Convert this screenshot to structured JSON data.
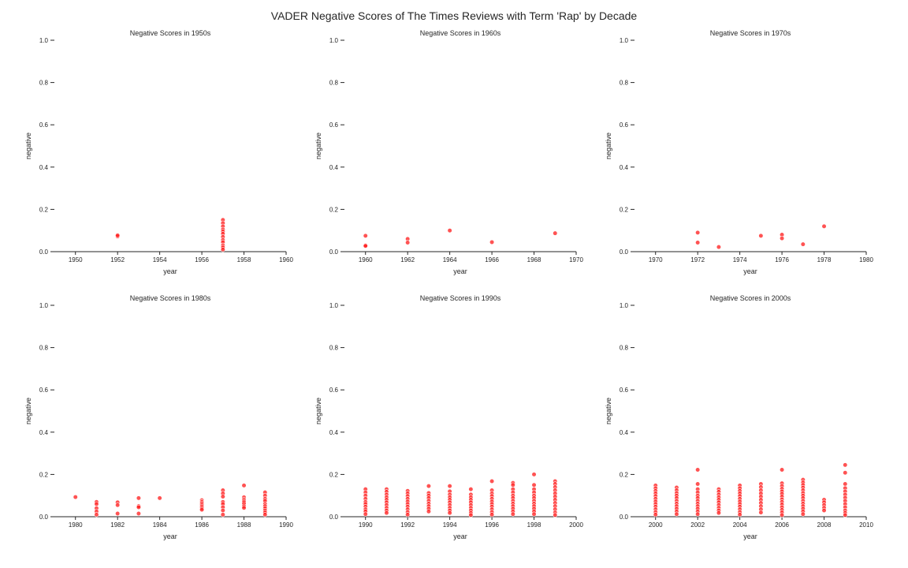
{
  "figure_title": "VADER Negative Scores of The Times Reviews with Term 'Rap' by Decade",
  "colors": {
    "point": "#ff1a1a",
    "axis": "#262626",
    "background": "#ffffff"
  },
  "chart_data": [
    {
      "type": "scatter",
      "title": "Negative Scores in 1950s",
      "xlabel": "year",
      "ylabel": "negative",
      "xlim": [
        1949,
        1960
      ],
      "ylim": [
        0,
        1.0
      ],
      "xticks": [
        "1950",
        "1952",
        "1954",
        "1956",
        "1958",
        "1960"
      ],
      "yticks": [
        "0.0",
        "0.2",
        "0.4",
        "0.6",
        "0.8",
        "1.0"
      ],
      "grid": false,
      "points": [
        [
          1952,
          0.072
        ],
        [
          1952,
          0.077
        ],
        [
          1957,
          0.15
        ],
        [
          1957,
          0.135
        ],
        [
          1957,
          0.12
        ],
        [
          1957,
          0.105
        ],
        [
          1957,
          0.095
        ],
        [
          1957,
          0.085
        ],
        [
          1957,
          0.07
        ],
        [
          1957,
          0.055
        ],
        [
          1957,
          0.045
        ],
        [
          1957,
          0.03
        ],
        [
          1957,
          0.02
        ],
        [
          1957,
          0.01
        ]
      ]
    },
    {
      "type": "scatter",
      "title": "Negative Scores in 1960s",
      "xlabel": "year",
      "ylabel": "negative",
      "xlim": [
        1959,
        1970
      ],
      "ylim": [
        0,
        1.0
      ],
      "xticks": [
        "1960",
        "1962",
        "1964",
        "1966",
        "1968",
        "1970"
      ],
      "yticks": [
        "0.0",
        "0.2",
        "0.4",
        "0.6",
        "0.8",
        "1.0"
      ],
      "grid": false,
      "points": [
        [
          1960,
          0.075
        ],
        [
          1960,
          0.03
        ],
        [
          1960,
          0.027
        ],
        [
          1962,
          0.06
        ],
        [
          1962,
          0.043
        ],
        [
          1964,
          0.1
        ],
        [
          1966,
          0.045
        ],
        [
          1969,
          0.087
        ]
      ]
    },
    {
      "type": "scatter",
      "title": "Negative Scores in 1970s",
      "xlabel": "year",
      "ylabel": "negative",
      "xlim": [
        1969,
        1980
      ],
      "ylim": [
        0,
        1.0
      ],
      "xticks": [
        "1970",
        "1972",
        "1974",
        "1976",
        "1978",
        "1980"
      ],
      "yticks": [
        "0.0",
        "0.2",
        "0.4",
        "0.6",
        "0.8",
        "1.0"
      ],
      "grid": false,
      "points": [
        [
          1972,
          0.09
        ],
        [
          1972,
          0.043
        ],
        [
          1973,
          0.022
        ],
        [
          1975,
          0.075
        ],
        [
          1976,
          0.08
        ],
        [
          1976,
          0.063
        ],
        [
          1977,
          0.035
        ],
        [
          1978,
          0.12
        ]
      ]
    },
    {
      "type": "scatter",
      "title": "Negative Scores in 1980s",
      "xlabel": "year",
      "ylabel": "negative",
      "xlim": [
        1979,
        1990
      ],
      "ylim": [
        0,
        1.0
      ],
      "xticks": [
        "1980",
        "1982",
        "1984",
        "1986",
        "1988",
        "1990"
      ],
      "yticks": [
        "0.0",
        "0.2",
        "0.4",
        "0.6",
        "0.8",
        "1.0"
      ],
      "grid": false,
      "points": [
        [
          1980,
          0.093
        ],
        [
          1981,
          0.07
        ],
        [
          1981,
          0.06
        ],
        [
          1981,
          0.04
        ],
        [
          1981,
          0.025
        ],
        [
          1981,
          0.01
        ],
        [
          1982,
          0.068
        ],
        [
          1982,
          0.055
        ],
        [
          1982,
          0.015
        ],
        [
          1983,
          0.088
        ],
        [
          1983,
          0.05
        ],
        [
          1983,
          0.045
        ],
        [
          1983,
          0.015
        ],
        [
          1984,
          0.088
        ],
        [
          1986,
          0.078
        ],
        [
          1986,
          0.07
        ],
        [
          1986,
          0.063
        ],
        [
          1986,
          0.055
        ],
        [
          1986,
          0.048
        ],
        [
          1986,
          0.04
        ],
        [
          1986,
          0.033
        ],
        [
          1987,
          0.125
        ],
        [
          1987,
          0.11
        ],
        [
          1987,
          0.095
        ],
        [
          1987,
          0.07
        ],
        [
          1987,
          0.06
        ],
        [
          1987,
          0.045
        ],
        [
          1987,
          0.03
        ],
        [
          1987,
          0.01
        ],
        [
          1988,
          0.148
        ],
        [
          1988,
          0.092
        ],
        [
          1988,
          0.082
        ],
        [
          1988,
          0.075
        ],
        [
          1988,
          0.068
        ],
        [
          1988,
          0.06
        ],
        [
          1988,
          0.05
        ],
        [
          1988,
          0.042
        ],
        [
          1989,
          0.115
        ],
        [
          1989,
          0.1
        ],
        [
          1989,
          0.085
        ],
        [
          1989,
          0.075
        ],
        [
          1989,
          0.06
        ],
        [
          1989,
          0.05
        ],
        [
          1989,
          0.04
        ],
        [
          1989,
          0.03
        ],
        [
          1989,
          0.02
        ],
        [
          1989,
          0.01
        ]
      ]
    },
    {
      "type": "scatter",
      "title": "Negative Scores in 1990s",
      "xlabel": "year",
      "ylabel": "negative",
      "xlim": [
        1989,
        2000
      ],
      "ylim": [
        0,
        1.0
      ],
      "xticks": [
        "1990",
        "1992",
        "1994",
        "1996",
        "1998",
        "2000"
      ],
      "yticks": [
        "0.0",
        "0.2",
        "0.4",
        "0.6",
        "0.8",
        "1.0"
      ],
      "grid": false,
      "points": [
        [
          1990,
          0.13
        ],
        [
          1990,
          0.115
        ],
        [
          1990,
          0.1
        ],
        [
          1990,
          0.085
        ],
        [
          1990,
          0.07
        ],
        [
          1990,
          0.06
        ],
        [
          1990,
          0.048
        ],
        [
          1990,
          0.035
        ],
        [
          1990,
          0.025
        ],
        [
          1990,
          0.012
        ],
        [
          1991,
          0.13
        ],
        [
          1991,
          0.118
        ],
        [
          1991,
          0.105
        ],
        [
          1991,
          0.092
        ],
        [
          1991,
          0.08
        ],
        [
          1991,
          0.068
        ],
        [
          1991,
          0.055
        ],
        [
          1991,
          0.042
        ],
        [
          1991,
          0.03
        ],
        [
          1991,
          0.018
        ],
        [
          1992,
          0.122
        ],
        [
          1992,
          0.11
        ],
        [
          1992,
          0.098
        ],
        [
          1992,
          0.085
        ],
        [
          1992,
          0.072
        ],
        [
          1992,
          0.06
        ],
        [
          1992,
          0.048
        ],
        [
          1992,
          0.035
        ],
        [
          1992,
          0.022
        ],
        [
          1992,
          0.01
        ],
        [
          1993,
          0.145
        ],
        [
          1993,
          0.112
        ],
        [
          1993,
          0.1
        ],
        [
          1993,
          0.088
        ],
        [
          1993,
          0.075
        ],
        [
          1993,
          0.062
        ],
        [
          1993,
          0.05
        ],
        [
          1993,
          0.038
        ],
        [
          1993,
          0.025
        ],
        [
          1994,
          0.145
        ],
        [
          1994,
          0.12
        ],
        [
          1994,
          0.105
        ],
        [
          1994,
          0.092
        ],
        [
          1994,
          0.08
        ],
        [
          1994,
          0.068
        ],
        [
          1994,
          0.055
        ],
        [
          1994,
          0.042
        ],
        [
          1994,
          0.03
        ],
        [
          1994,
          0.018
        ],
        [
          1995,
          0.13
        ],
        [
          1995,
          0.105
        ],
        [
          1995,
          0.092
        ],
        [
          1995,
          0.08
        ],
        [
          1995,
          0.068
        ],
        [
          1995,
          0.055
        ],
        [
          1995,
          0.042
        ],
        [
          1995,
          0.03
        ],
        [
          1995,
          0.018
        ],
        [
          1995,
          0.008
        ],
        [
          1996,
          0.168
        ],
        [
          1996,
          0.125
        ],
        [
          1996,
          0.11
        ],
        [
          1996,
          0.098
        ],
        [
          1996,
          0.085
        ],
        [
          1996,
          0.072
        ],
        [
          1996,
          0.06
        ],
        [
          1996,
          0.048
        ],
        [
          1996,
          0.035
        ],
        [
          1996,
          0.022
        ],
        [
          1996,
          0.01
        ],
        [
          1997,
          0.16
        ],
        [
          1997,
          0.15
        ],
        [
          1997,
          0.13
        ],
        [
          1997,
          0.115
        ],
        [
          1997,
          0.1
        ],
        [
          1997,
          0.088
        ],
        [
          1997,
          0.075
        ],
        [
          1997,
          0.062
        ],
        [
          1997,
          0.05
        ],
        [
          1997,
          0.038
        ],
        [
          1997,
          0.025
        ],
        [
          1997,
          0.012
        ],
        [
          1998,
          0.2
        ],
        [
          1998,
          0.15
        ],
        [
          1998,
          0.13
        ],
        [
          1998,
          0.115
        ],
        [
          1998,
          0.1
        ],
        [
          1998,
          0.088
        ],
        [
          1998,
          0.075
        ],
        [
          1998,
          0.062
        ],
        [
          1998,
          0.05
        ],
        [
          1998,
          0.038
        ],
        [
          1998,
          0.025
        ],
        [
          1998,
          0.012
        ],
        [
          1999,
          0.168
        ],
        [
          1999,
          0.155
        ],
        [
          1999,
          0.14
        ],
        [
          1999,
          0.125
        ],
        [
          1999,
          0.11
        ],
        [
          1999,
          0.095
        ],
        [
          1999,
          0.08
        ],
        [
          1999,
          0.065
        ],
        [
          1999,
          0.05
        ],
        [
          1999,
          0.035
        ],
        [
          1999,
          0.02
        ],
        [
          1999,
          0.008
        ]
      ]
    },
    {
      "type": "scatter",
      "title": "Negative Scores in 2000s",
      "xlabel": "year",
      "ylabel": "negative",
      "xlim": [
        1999,
        2010
      ],
      "ylim": [
        0,
        1.0
      ],
      "xticks": [
        "2000",
        "2002",
        "2004",
        "2006",
        "2008",
        "2010"
      ],
      "yticks": [
        "0.0",
        "0.2",
        "0.4",
        "0.6",
        "0.8",
        "1.0"
      ],
      "grid": false,
      "points": [
        [
          2000,
          0.148
        ],
        [
          2000,
          0.135
        ],
        [
          2000,
          0.122
        ],
        [
          2000,
          0.11
        ],
        [
          2000,
          0.098
        ],
        [
          2000,
          0.085
        ],
        [
          2000,
          0.072
        ],
        [
          2000,
          0.06
        ],
        [
          2000,
          0.048
        ],
        [
          2000,
          0.035
        ],
        [
          2000,
          0.022
        ],
        [
          2000,
          0.01
        ],
        [
          2001,
          0.138
        ],
        [
          2001,
          0.125
        ],
        [
          2001,
          0.112
        ],
        [
          2001,
          0.1
        ],
        [
          2001,
          0.088
        ],
        [
          2001,
          0.075
        ],
        [
          2001,
          0.062
        ],
        [
          2001,
          0.05
        ],
        [
          2001,
          0.038
        ],
        [
          2001,
          0.025
        ],
        [
          2001,
          0.012
        ],
        [
          2002,
          0.222
        ],
        [
          2002,
          0.155
        ],
        [
          2002,
          0.13
        ],
        [
          2002,
          0.115
        ],
        [
          2002,
          0.1
        ],
        [
          2002,
          0.088
        ],
        [
          2002,
          0.075
        ],
        [
          2002,
          0.062
        ],
        [
          2002,
          0.05
        ],
        [
          2002,
          0.038
        ],
        [
          2002,
          0.025
        ],
        [
          2002,
          0.012
        ],
        [
          2003,
          0.13
        ],
        [
          2003,
          0.118
        ],
        [
          2003,
          0.105
        ],
        [
          2003,
          0.092
        ],
        [
          2003,
          0.08
        ],
        [
          2003,
          0.068
        ],
        [
          2003,
          0.055
        ],
        [
          2003,
          0.042
        ],
        [
          2003,
          0.03
        ],
        [
          2003,
          0.018
        ],
        [
          2004,
          0.148
        ],
        [
          2004,
          0.135
        ],
        [
          2004,
          0.122
        ],
        [
          2004,
          0.11
        ],
        [
          2004,
          0.098
        ],
        [
          2004,
          0.085
        ],
        [
          2004,
          0.072
        ],
        [
          2004,
          0.06
        ],
        [
          2004,
          0.048
        ],
        [
          2004,
          0.035
        ],
        [
          2004,
          0.022
        ],
        [
          2004,
          0.01
        ],
        [
          2005,
          0.155
        ],
        [
          2005,
          0.14
        ],
        [
          2005,
          0.125
        ],
        [
          2005,
          0.11
        ],
        [
          2005,
          0.095
        ],
        [
          2005,
          0.08
        ],
        [
          2005,
          0.065
        ],
        [
          2005,
          0.05
        ],
        [
          2005,
          0.035
        ],
        [
          2005,
          0.02
        ],
        [
          2006,
          0.222
        ],
        [
          2006,
          0.158
        ],
        [
          2006,
          0.145
        ],
        [
          2006,
          0.132
        ],
        [
          2006,
          0.12
        ],
        [
          2006,
          0.108
        ],
        [
          2006,
          0.095
        ],
        [
          2006,
          0.082
        ],
        [
          2006,
          0.07
        ],
        [
          2006,
          0.058
        ],
        [
          2006,
          0.045
        ],
        [
          2006,
          0.032
        ],
        [
          2006,
          0.02
        ],
        [
          2006,
          0.008
        ],
        [
          2007,
          0.175
        ],
        [
          2007,
          0.162
        ],
        [
          2007,
          0.15
        ],
        [
          2007,
          0.138
        ],
        [
          2007,
          0.125
        ],
        [
          2007,
          0.112
        ],
        [
          2007,
          0.1
        ],
        [
          2007,
          0.088
        ],
        [
          2007,
          0.075
        ],
        [
          2007,
          0.062
        ],
        [
          2007,
          0.05
        ],
        [
          2007,
          0.038
        ],
        [
          2007,
          0.025
        ],
        [
          2007,
          0.012
        ],
        [
          2008,
          0.08
        ],
        [
          2008,
          0.068
        ],
        [
          2008,
          0.055
        ],
        [
          2008,
          0.042
        ],
        [
          2008,
          0.03
        ],
        [
          2009,
          0.245
        ],
        [
          2009,
          0.208
        ],
        [
          2009,
          0.155
        ],
        [
          2009,
          0.135
        ],
        [
          2009,
          0.12
        ],
        [
          2009,
          0.105
        ],
        [
          2009,
          0.09
        ],
        [
          2009,
          0.075
        ],
        [
          2009,
          0.06
        ],
        [
          2009,
          0.045
        ],
        [
          2009,
          0.03
        ],
        [
          2009,
          0.018
        ],
        [
          2009,
          0.008
        ]
      ]
    }
  ]
}
